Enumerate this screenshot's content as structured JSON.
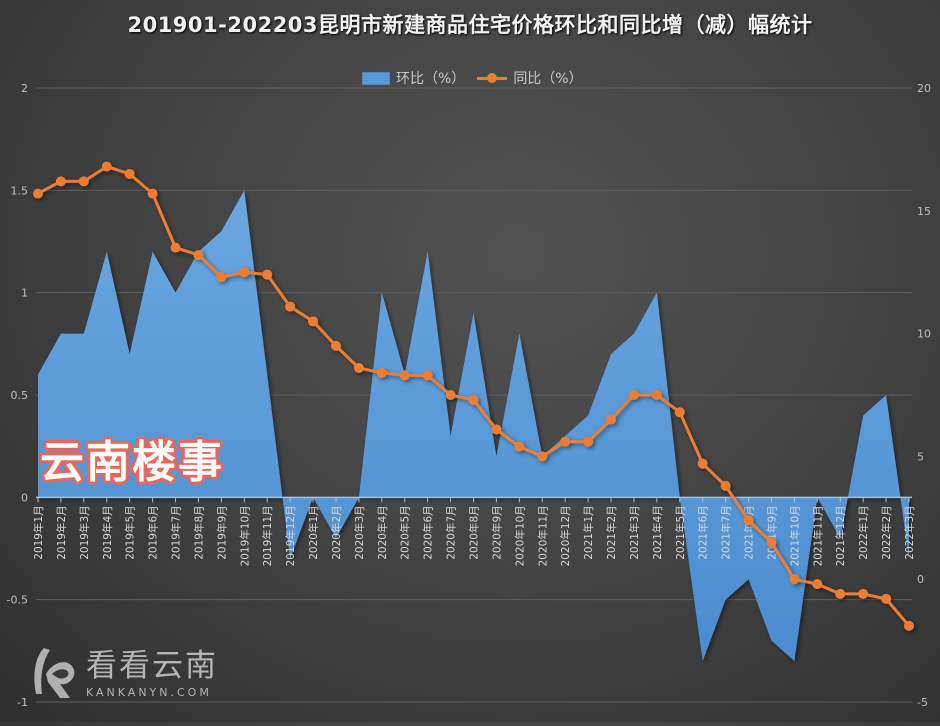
{
  "title": "201901-202203昆明市新建商品住宅价格环比和同比增（减）幅统计",
  "legend": {
    "mom_label": "环比（%）",
    "yoy_label": "同比（%）"
  },
  "watermarks": {
    "yunnan_loushi": "云南楼事",
    "kankan_cn": "看看云南",
    "kankan_en": "KANKANYN.COM"
  },
  "colors": {
    "mom_area": "#5b9bd5",
    "yoy_line": "#ed7d31",
    "gridline": "#5e5e5e",
    "axis_text": "#bfbfbf"
  },
  "chart_data": {
    "type": "area+line",
    "title": "201901-202203昆明市新建商品住宅价格环比和同比增（减）幅统计",
    "xlabel": "",
    "ylabel_left": "环比（%）",
    "ylabel_right": "同比（%）",
    "ylim_left": [
      -1,
      2
    ],
    "yticks_left": [
      "-1",
      "-0.5",
      "0",
      "0.5",
      "1",
      "1.5",
      "2"
    ],
    "ylim_right": [
      -5,
      20
    ],
    "yticks_right": [
      "-5",
      "0",
      "5",
      "10",
      "15",
      "20"
    ],
    "grid": true,
    "legend_position": "top",
    "categories": [
      "2019年1月",
      "2019年2月",
      "2019年3月",
      "2019年4月",
      "2019年5月",
      "2019年6月",
      "2019年7月",
      "2019年8月",
      "2019年9月",
      "2019年10月",
      "2019年11月",
      "2019年12月",
      "2020年1月",
      "2020年2月",
      "2020年3月",
      "2020年4月",
      "2020年5月",
      "2020年6月",
      "2020年7月",
      "2020年8月",
      "2020年9月",
      "2020年10月",
      "2020年11月",
      "2020年12月",
      "2021年1月",
      "2021年2月",
      "2021年3月",
      "2021年4月",
      "2021年5月",
      "2021年6月",
      "2021年7月",
      "2021年8月",
      "2021年9月",
      "2021年10月",
      "2021年11月",
      "2021年12月",
      "2022年1月",
      "2022年2月",
      "2022年3月"
    ],
    "series": [
      {
        "name": "环比（%）",
        "type": "area",
        "axis": "left",
        "values": [
          0.6,
          0.8,
          0.8,
          1.2,
          0.7,
          1.2,
          1.0,
          1.2,
          1.3,
          1.5,
          0.6,
          -0.3,
          0.0,
          -0.2,
          0.0,
          1.0,
          0.6,
          1.2,
          0.3,
          0.9,
          0.2,
          0.8,
          0.2,
          0.3,
          0.4,
          0.7,
          0.8,
          1.0,
          0.0,
          -0.8,
          -0.5,
          -0.4,
          -0.7,
          -0.8,
          0.0,
          -0.2,
          0.4,
          0.5,
          -0.3
        ]
      },
      {
        "name": "同比（%）",
        "type": "line",
        "axis": "right",
        "values": [
          15.7,
          16.2,
          16.2,
          16.8,
          16.5,
          15.7,
          13.5,
          13.2,
          12.3,
          12.5,
          12.4,
          11.1,
          10.5,
          9.5,
          8.6,
          8.4,
          8.3,
          8.3,
          7.5,
          7.3,
          6.1,
          5.4,
          5.0,
          5.6,
          5.6,
          6.5,
          7.5,
          7.5,
          6.8,
          4.7,
          3.8,
          2.4,
          1.5,
          0.0,
          -0.2,
          -0.6,
          -0.6,
          -0.8,
          -1.9
        ]
      }
    ]
  }
}
